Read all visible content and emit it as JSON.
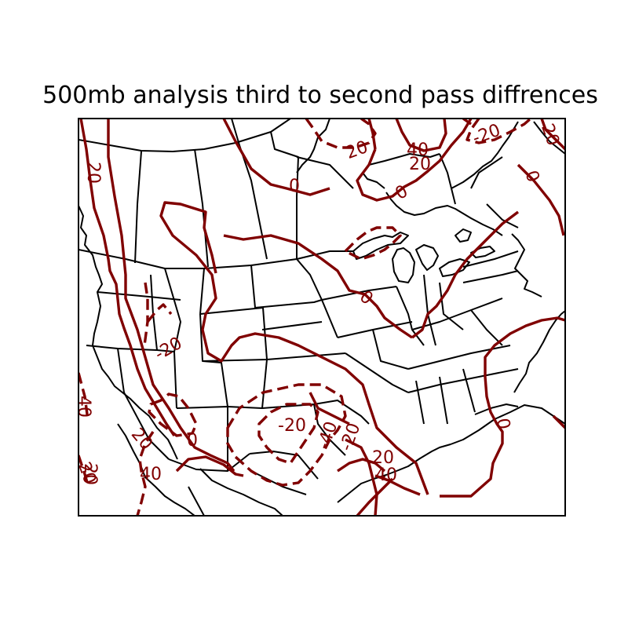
{
  "title": "500mb analysis third to second pass diffrences",
  "contour_color": "#800000",
  "contour_labels": [
    "20",
    "0",
    "20",
    "40",
    "20",
    "0",
    "-20",
    "20",
    "-20",
    "0",
    "20",
    "0",
    "-20",
    "0",
    "20",
    "40",
    "-40",
    "-20",
    "20",
    "40",
    "0",
    "40",
    "20",
    "40",
    "20"
  ]
}
